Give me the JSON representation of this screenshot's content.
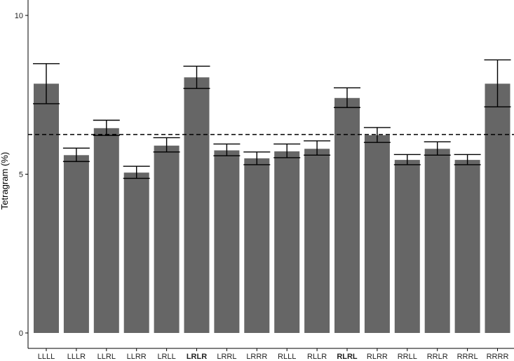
{
  "chart_data": {
    "type": "bar",
    "title": "",
    "xlabel": "",
    "ylabel": "Tetragram (%)",
    "ylim": [
      0,
      10
    ],
    "yticks": [
      0,
      5,
      10
    ],
    "grid": false,
    "categories": [
      "LLLL",
      "LLLR",
      "LLRL",
      "LLRR",
      "LRLL",
      "LRLR",
      "LRRL",
      "LRRR",
      "RLLL",
      "RLLR",
      "RLRL",
      "RLRR",
      "RRLL",
      "RRLR",
      "RRRL",
      "RRRR"
    ],
    "bold_categories": [
      "LRLR",
      "RLRL"
    ],
    "values": [
      7.85,
      5.6,
      6.45,
      5.05,
      5.9,
      8.05,
      5.75,
      5.5,
      5.72,
      5.8,
      7.4,
      6.23,
      5.45,
      5.8,
      5.45,
      7.85
    ],
    "error_low": [
      7.22,
      5.4,
      6.22,
      4.87,
      5.7,
      7.7,
      5.58,
      5.3,
      5.52,
      5.6,
      7.1,
      6.0,
      5.3,
      5.6,
      5.3,
      7.12
    ],
    "error_high": [
      8.48,
      5.82,
      6.7,
      5.25,
      6.15,
      8.4,
      5.95,
      5.7,
      5.95,
      6.05,
      7.72,
      6.47,
      5.62,
      6.02,
      5.62,
      8.6
    ],
    "reference_line": 6.25,
    "colors": {
      "bar": "#666666",
      "error_bar": "#000000",
      "reference_line": "#000000",
      "axis": "#000000",
      "background": "#ffffff"
    }
  }
}
